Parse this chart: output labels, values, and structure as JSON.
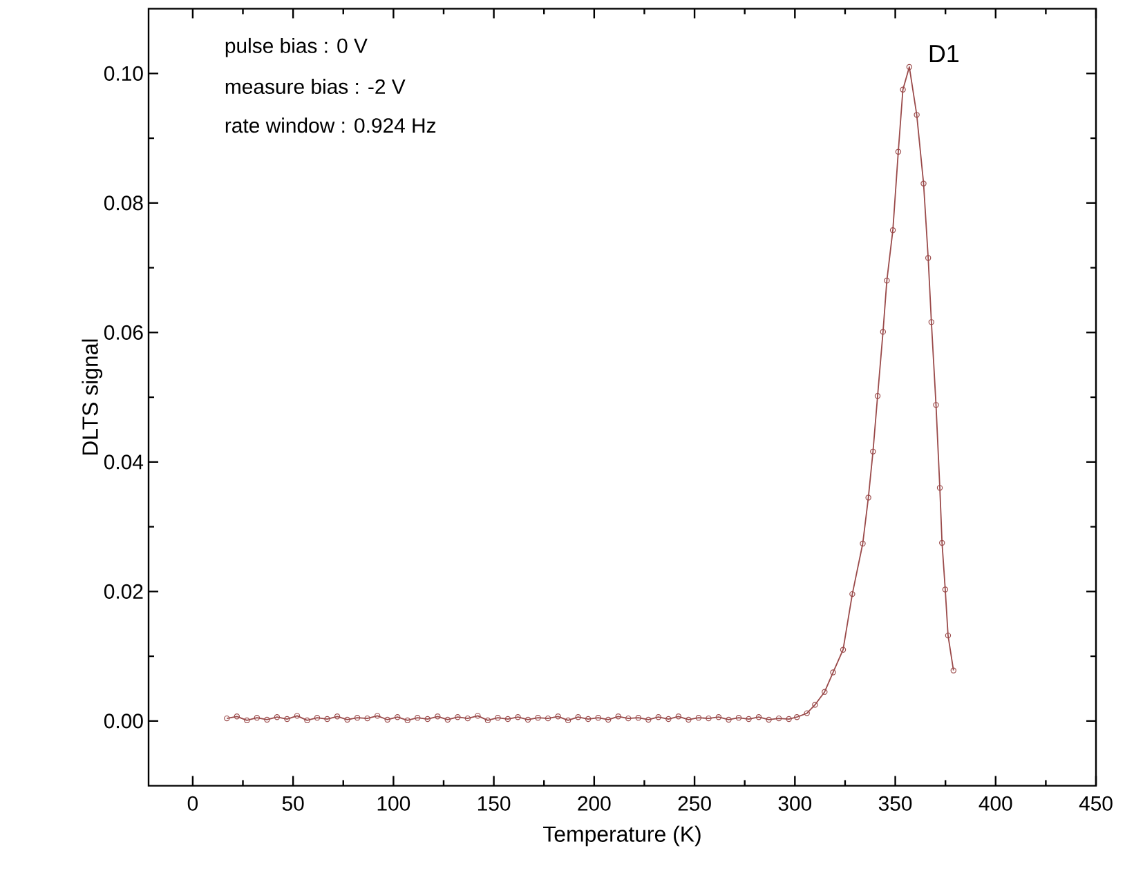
{
  "chart_data": {
    "type": "line",
    "xlabel": "Temperature (K)",
    "ylabel": "DLTS signal",
    "annotations": [
      "pulse bias : 0 V",
      "measure bias : -2 V",
      "rate window : 0.924 Hz",
      {
        "text": "D1",
        "x": 357,
        "y": 0.101
      }
    ],
    "xlim": [
      -22,
      450
    ],
    "ylim": [
      -0.01,
      0.11
    ],
    "xticks": [
      0,
      {
        "value": 25,
        "label": null
      },
      50,
      {
        "value": 75,
        "label": null
      },
      100,
      {
        "value": 125,
        "label": null
      },
      150,
      {
        "value": 175,
        "label": null
      },
      200,
      {
        "value": 225,
        "label": null
      },
      250,
      {
        "value": 275,
        "label": null
      },
      300,
      {
        "value": 325,
        "label": null
      },
      350,
      {
        "value": 375,
        "label": null
      },
      400,
      {
        "value": 425,
        "label": null
      },
      450
    ],
    "yticks": [
      {
        "value": 0,
        "label": "0.00"
      },
      {
        "value": 0.01,
        "label": null
      },
      {
        "value": 0.02,
        "label": "0.02"
      },
      {
        "value": 0.03,
        "label": null
      },
      {
        "value": 0.04,
        "label": "0.04"
      },
      {
        "value": 0.05,
        "label": null
      },
      {
        "value": 0.06,
        "label": "0.06"
      },
      {
        "value": 0.07,
        "label": null
      },
      {
        "value": 0.08,
        "label": "0.08"
      },
      {
        "value": 0.09,
        "label": null
      },
      {
        "value": 0.1,
        "label": "0.10"
      }
    ],
    "marker": "circle",
    "line_style": "solid",
    "series": [
      {
        "color": "#9a4a4a",
        "x": [
          17,
          22,
          27,
          32,
          37,
          42,
          47,
          52,
          57,
          62,
          67,
          72,
          77,
          82,
          87,
          92,
          97,
          102,
          107,
          112,
          117,
          122,
          127,
          132,
          137,
          142,
          147,
          152,
          157,
          162,
          167,
          172,
          177,
          182,
          187,
          192,
          197,
          202,
          207,
          212,
          217,
          222,
          227,
          232,
          237,
          242,
          247,
          252,
          257,
          262,
          267,
          272,
          277,
          282,
          287,
          292,
          297,
          301,
          306,
          310,
          314.8,
          319,
          324,
          328.6,
          333.8,
          336.6,
          338.9,
          341.2,
          343.9,
          345.8,
          348.8,
          351.5,
          353.8,
          357,
          360.7,
          364.1,
          366.4,
          368,
          370.3,
          372.2,
          373.3,
          374.9,
          376.3,
          379
        ],
        "values": [
          0.0004,
          0.0007,
          0.0001,
          0.0005,
          0.0002,
          0.0006,
          0.0003,
          0.0008,
          0.0001,
          0.0005,
          0.0003,
          0.0007,
          0.0002,
          0.0005,
          0.0004,
          0.0008,
          0.0002,
          0.0006,
          0.0001,
          0.0005,
          0.0003,
          0.0007,
          0.0002,
          0.0006,
          0.0004,
          0.0008,
          0.0001,
          0.0005,
          0.0003,
          0.0006,
          0.0002,
          0.0005,
          0.0004,
          0.0007,
          0.0001,
          0.0006,
          0.0003,
          0.0005,
          0.0002,
          0.0007,
          0.0004,
          0.0005,
          0.0002,
          0.0006,
          0.0003,
          0.0007,
          0.0002,
          0.0005,
          0.0004,
          0.0006,
          0.0002,
          0.0005,
          0.0003,
          0.0006,
          0.0002,
          0.0004,
          0.0003,
          0.0006,
          0.0012,
          0.0025,
          0.0045,
          0.0075,
          0.011,
          0.0196,
          0.0274,
          0.0345,
          0.0416,
          0.0502,
          0.0601,
          0.068,
          0.0758,
          0.0879,
          0.0975,
          0.101,
          0.0936,
          0.083,
          0.0715,
          0.0616,
          0.0488,
          0.036,
          0.0275,
          0.0203,
          0.0132,
          0.0078
        ]
      }
    ]
  }
}
